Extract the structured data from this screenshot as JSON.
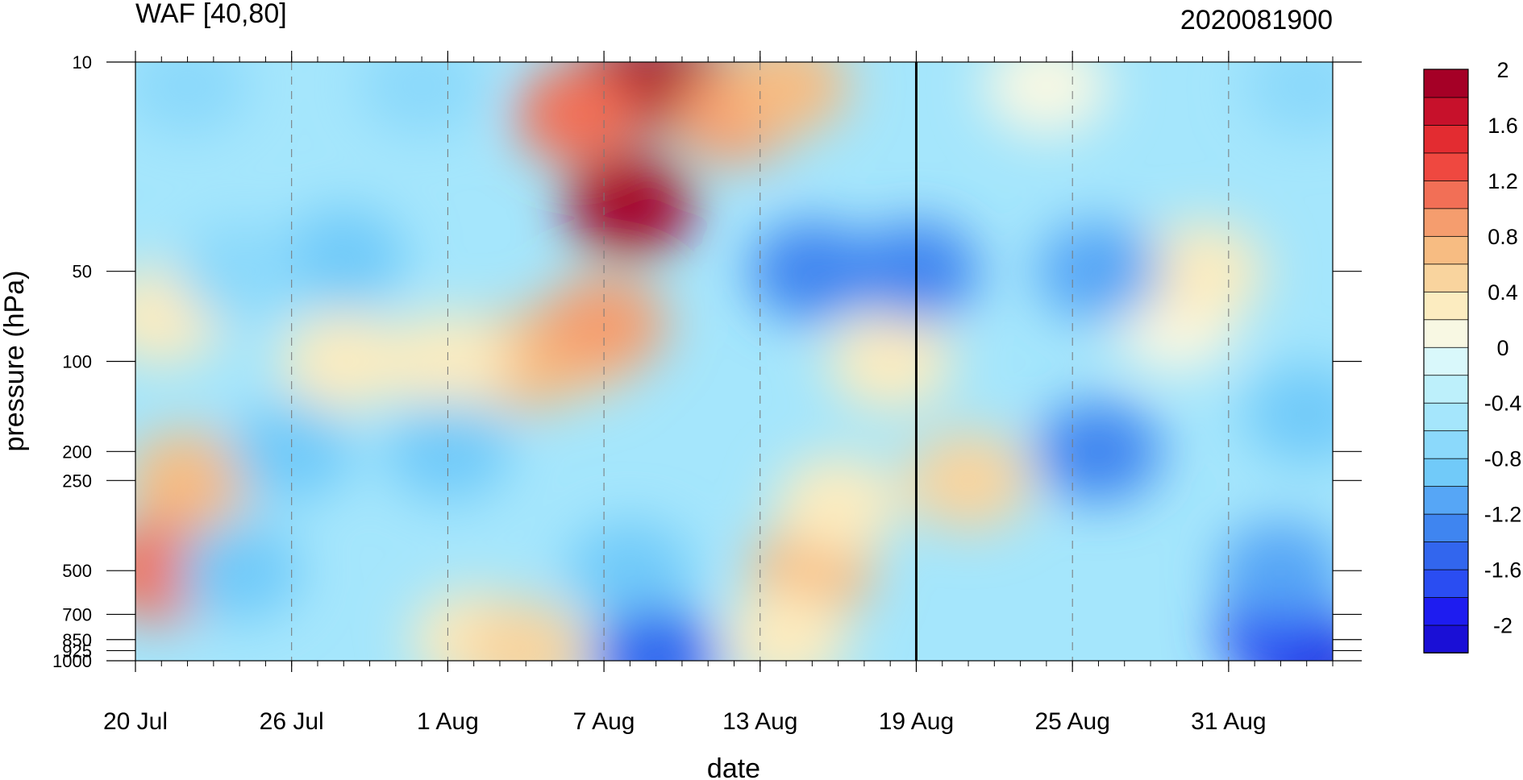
{
  "chart_data": {
    "type": "heatmap",
    "title_left": "WAF [40,80]",
    "title_right": "2020081900",
    "xlabel": "date",
    "ylabel": "pressure (hPa)",
    "x_start_date": "2020-07-20",
    "x_end_date": "2020-09-04",
    "x_tick_labels": [
      "20 Jul",
      "26 Jul",
      "1 Aug",
      "7 Aug",
      "13 Aug",
      "19 Aug",
      "25 Aug",
      "31 Aug"
    ],
    "y_scale": "log",
    "y_levels_hpa": [
      10,
      50,
      100,
      200,
      250,
      500,
      700,
      850,
      925,
      1000
    ],
    "y_tick_labels": [
      "10",
      "50",
      "100",
      "200",
      "250",
      "500",
      "700",
      "850",
      "925",
      "1000"
    ],
    "analysis_marker_date": "19 Aug",
    "colorbar": {
      "min": -2.2,
      "step": 0.2,
      "tick_labels": [
        "2",
        "1.6",
        "1.2",
        "0.8",
        "0.4",
        "0",
        "-0.4",
        "-0.8",
        "-1.2",
        "-1.6",
        "-2"
      ],
      "colors": [
        "#1a0fd6",
        "#1e1cf0",
        "#2a4df2",
        "#3266ee",
        "#3f85f0",
        "#56a6f6",
        "#71caf9",
        "#8bd9fb",
        "#a5e6fc",
        "#bdf0fb",
        "#d9f8fb",
        "#f8f8e3",
        "#fcecc0",
        "#f9d49e",
        "#f7bc82",
        "#f59d6e",
        "#f26f56",
        "#ef4840",
        "#e32c31",
        "#c7112b",
        "#a50026"
      ]
    },
    "features": [
      {
        "date": "8 Aug",
        "pressure": 30,
        "value": 2.2
      },
      {
        "date": "8 Aug",
        "pressure": 12,
        "value": 2.2
      },
      {
        "date": "10 Aug",
        "pressure": 12,
        "value": 2.0
      },
      {
        "date": "6 Aug",
        "pressure": 15,
        "value": 1.0
      },
      {
        "date": "12 Aug",
        "pressure": 15,
        "value": 0.8
      },
      {
        "date": "14 Aug",
        "pressure": 12,
        "value": 0.6
      },
      {
        "date": "6 Aug",
        "pressure": 90,
        "value": 0.5
      },
      {
        "date": "4 Aug",
        "pressure": 100,
        "value": 0.6
      },
      {
        "date": "7 Aug",
        "pressure": 75,
        "value": 0.8
      },
      {
        "date": "22 Jul",
        "pressure": 250,
        "value": 0.6
      },
      {
        "date": "21 Jul",
        "pressure": 500,
        "value": 1.0
      },
      {
        "date": "21 Jul",
        "pressure": 70,
        "value": 0.2
      },
      {
        "date": "28 Jul",
        "pressure": 100,
        "value": 0.2
      },
      {
        "date": "1 Aug",
        "pressure": 100,
        "value": 0.2
      },
      {
        "date": "2 Aug",
        "pressure": 850,
        "value": 0.3
      },
      {
        "date": "4 Aug",
        "pressure": 925,
        "value": 0.4
      },
      {
        "date": "15 Aug",
        "pressure": 500,
        "value": 0.6
      },
      {
        "date": "16 Aug",
        "pressure": 300,
        "value": 0.3
      },
      {
        "date": "14 Aug",
        "pressure": 850,
        "value": 0.3
      },
      {
        "date": "18 Aug",
        "pressure": 100,
        "value": 0.3
      },
      {
        "date": "21 Aug",
        "pressure": 250,
        "value": 0.4
      },
      {
        "date": "24 Aug",
        "pressure": 12,
        "value": 0.1
      },
      {
        "date": "29 Aug",
        "pressure": 75,
        "value": 0.1
      },
      {
        "date": "30 Aug",
        "pressure": 50,
        "value": 0.2
      },
      {
        "date": "15 Aug",
        "pressure": 50,
        "value": -1.3
      },
      {
        "date": "19 Aug",
        "pressure": 50,
        "value": -1.3
      },
      {
        "date": "26 Aug",
        "pressure": 50,
        "value": -1.2
      },
      {
        "date": "26 Aug",
        "pressure": 200,
        "value": -1.4
      },
      {
        "date": "28 Jul",
        "pressure": 45,
        "value": -0.9
      },
      {
        "date": "24 Jul",
        "pressure": 50,
        "value": -0.8
      },
      {
        "date": "26 Jul",
        "pressure": 200,
        "value": -1.0
      },
      {
        "date": "1 Aug",
        "pressure": 200,
        "value": -1.0
      },
      {
        "date": "24 Jul",
        "pressure": 500,
        "value": -0.9
      },
      {
        "date": "8 Aug",
        "pressure": 500,
        "value": -1.0
      },
      {
        "date": "9 Aug",
        "pressure": 980,
        "value": -1.6
      },
      {
        "date": "3 Sep",
        "pressure": 980,
        "value": -2.1
      },
      {
        "date": "2 Sep",
        "pressure": 800,
        "value": -1.7
      },
      {
        "date": "2 Sep",
        "pressure": 500,
        "value": -1.2
      },
      {
        "date": "3 Sep",
        "pressure": 150,
        "value": -1.0
      },
      {
        "date": "22 Jul",
        "pressure": 12,
        "value": -0.8
      },
      {
        "date": "31 Jul",
        "pressure": 12,
        "value": -0.8
      },
      {
        "date": "3 Sep",
        "pressure": 12,
        "value": -0.8
      }
    ]
  }
}
